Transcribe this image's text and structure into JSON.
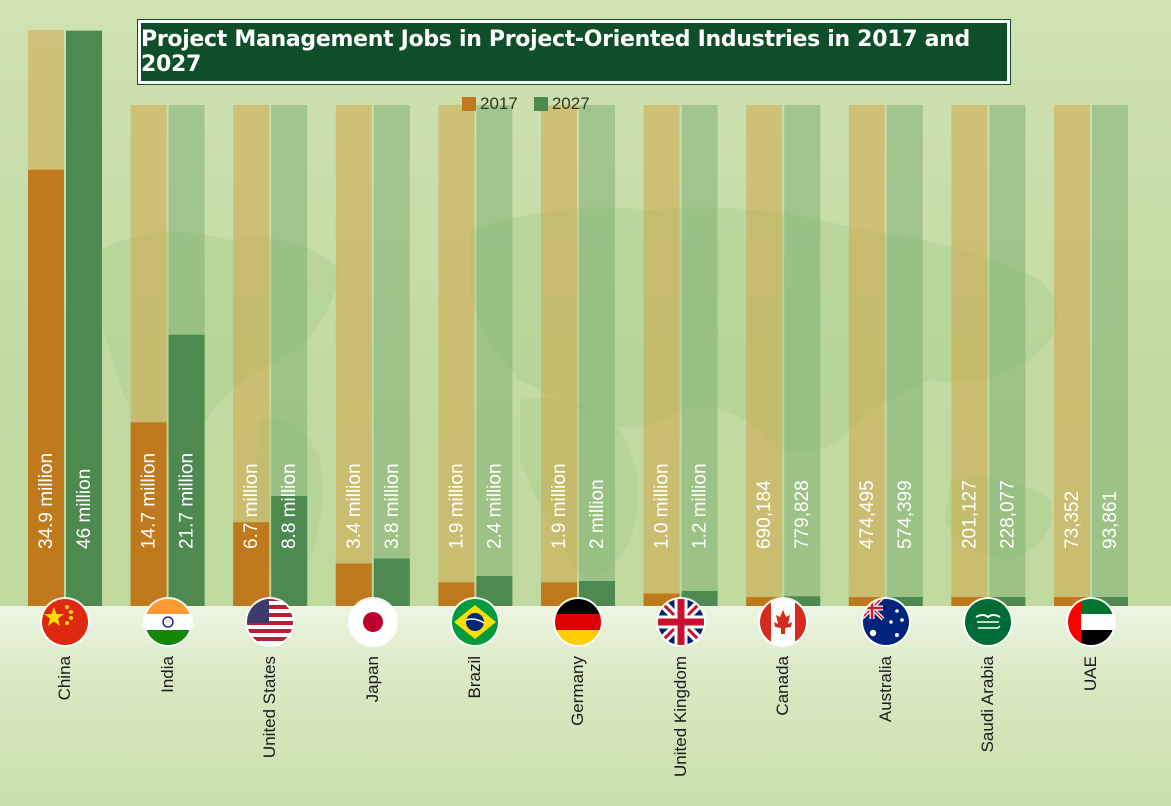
{
  "title": "Project Management Jobs in Project-Oriented Industries in 2017 and 2027",
  "legend": {
    "label_2017": "2017",
    "label_2027": "2027"
  },
  "colors": {
    "c2017": "#c07a1e",
    "c2027": "#4e8a50",
    "title_bg": "#0e4f2a"
  },
  "countries": [
    {
      "name": "China",
      "flag": "china-flag"
    },
    {
      "name": "India",
      "flag": "india-flag"
    },
    {
      "name": "United States",
      "flag": "usa-flag"
    },
    {
      "name": "Japan",
      "flag": "japan-flag"
    },
    {
      "name": "Brazil",
      "flag": "brazil-flag"
    },
    {
      "name": "Germany",
      "flag": "germany-flag"
    },
    {
      "name": "United Kingdom",
      "flag": "uk-flag"
    },
    {
      "name": "Canada",
      "flag": "canada-flag"
    },
    {
      "name": "Australia",
      "flag": "australia-flag"
    },
    {
      "name": "Saudi Arabia",
      "flag": "saudi-arabia-flag"
    },
    {
      "name": "UAE",
      "flag": "uae-flag"
    }
  ],
  "chart_data": {
    "type": "bar",
    "categories": [
      "China",
      "India",
      "United States",
      "Japan",
      "Brazil",
      "Germany",
      "United Kingdom",
      "Canada",
      "Australia",
      "Saudi Arabia",
      "UAE"
    ],
    "series": [
      {
        "name": "2017",
        "values": [
          34900000,
          14700000,
          6700000,
          3400000,
          1900000,
          1900000,
          1000000,
          690184,
          474495,
          201127,
          73352
        ],
        "labels": [
          "34.9 million",
          "14.7 million",
          "6.7 million",
          "3.4 million",
          "1.9 million",
          "1.9 million",
          "1.0 million",
          "690,184",
          "474,495",
          "201,127",
          "73,352"
        ]
      },
      {
        "name": "2027",
        "values": [
          46000000,
          21700000,
          8800000,
          3800000,
          2400000,
          2000000,
          1200000,
          779828,
          574399,
          228077,
          93861
        ],
        "labels": [
          "46 million",
          "21.7 million",
          "8.8 million",
          "3.8 million",
          "2.4 million",
          "2 million",
          "1.2 million",
          "779,828",
          "574,399",
          "228,077",
          "93,861"
        ]
      }
    ],
    "title": "Project Management Jobs in Project-Oriented Industries in 2017 and 2027",
    "xlabel": "",
    "ylabel": "",
    "grid": false,
    "legend_position": "top"
  }
}
